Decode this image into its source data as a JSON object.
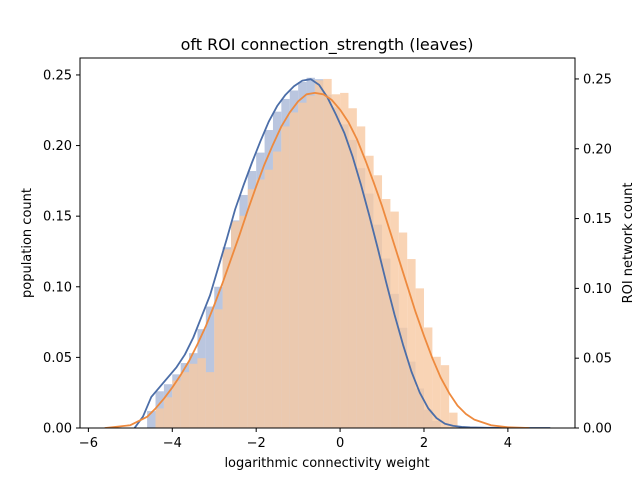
{
  "chart_data": {
    "type": "bar",
    "subtype": "histogram-with-kde",
    "title": "oft ROI connection_strength (leaves)",
    "xlabel": "logarithmic connectivity weight",
    "ylabel": "population count",
    "y2label": "ROI network count",
    "xlim": [
      -6.2,
      5.6
    ],
    "ylim": [
      0,
      0.262
    ],
    "y2lim": [
      0,
      0.265
    ],
    "x_ticks": [
      -6,
      -4,
      -2,
      0,
      2,
      4
    ],
    "x_tick_labels": [
      "−6",
      "−4",
      "−2",
      "0",
      "2",
      "4"
    ],
    "y_ticks": [
      0.0,
      0.05,
      0.1,
      0.15,
      0.2,
      0.25
    ],
    "y_tick_labels": [
      "0.00",
      "0.05",
      "0.10",
      "0.15",
      "0.20",
      "0.25"
    ],
    "y2_ticks": [
      0.0,
      0.05,
      0.1,
      0.15,
      0.2,
      0.25
    ],
    "y2_tick_labels": [
      "0.00",
      "0.05",
      "0.10",
      "0.15",
      "0.20",
      "0.25"
    ],
    "grid": false,
    "legend": "none",
    "series": [
      {
        "axis": "left",
        "color": "#4c6ea8",
        "fill_color": "#a9b8d7",
        "bin_width": 0.2,
        "bin_starts": [
          -4.8,
          -4.6,
          -4.4,
          -4.2,
          -4.0,
          -3.8,
          -3.6,
          -3.4,
          -3.2,
          -3.0,
          -2.8,
          -2.6,
          -2.4,
          -2.2,
          -2.0,
          -1.8,
          -1.6,
          -1.4,
          -1.2,
          -1.0,
          -0.8,
          -0.6,
          -0.4,
          -0.2,
          0.0,
          0.2,
          0.4,
          0.6,
          0.8,
          1.0,
          1.2,
          1.4,
          1.6,
          1.8,
          2.0,
          2.2,
          2.4,
          2.6
        ],
        "values": [
          0.0,
          0.012,
          0.026,
          0.031,
          0.038,
          0.046,
          0.053,
          0.07,
          0.086,
          0.1,
          0.128,
          0.147,
          0.165,
          0.182,
          0.195,
          0.211,
          0.224,
          0.233,
          0.239,
          0.245,
          0.248,
          0.247,
          0.236,
          0.227,
          0.215,
          0.204,
          0.184,
          0.166,
          0.144,
          0.12,
          0.095,
          0.071,
          0.047,
          0.028,
          0.013,
          0.005,
          0.0,
          0.0
        ],
        "kde_x": [
          -4.9,
          -4.7,
          -4.5,
          -4.3,
          -4.1,
          -3.9,
          -3.7,
          -3.5,
          -3.3,
          -3.1,
          -2.9,
          -2.7,
          -2.5,
          -2.3,
          -2.1,
          -1.9,
          -1.7,
          -1.5,
          -1.3,
          -1.1,
          -0.9,
          -0.7,
          -0.5,
          -0.3,
          -0.1,
          0.1,
          0.3,
          0.5,
          0.7,
          0.9,
          1.1,
          1.3,
          1.5,
          1.7,
          1.9,
          2.1,
          2.3,
          2.5,
          2.7,
          2.9,
          3.1,
          3.5,
          4.0,
          4.5,
          5.0
        ],
        "kde_y": [
          0.0,
          0.008,
          0.022,
          0.029,
          0.036,
          0.043,
          0.052,
          0.064,
          0.079,
          0.094,
          0.114,
          0.134,
          0.155,
          0.172,
          0.188,
          0.203,
          0.217,
          0.228,
          0.236,
          0.242,
          0.246,
          0.247,
          0.243,
          0.234,
          0.222,
          0.209,
          0.192,
          0.172,
          0.15,
          0.127,
          0.103,
          0.08,
          0.059,
          0.04,
          0.025,
          0.014,
          0.007,
          0.003,
          0.0015,
          0.0008,
          0.0004,
          0.0002,
          0.0001,
          0.0,
          0.0
        ]
      },
      {
        "axis": "right",
        "color": "#ee8a3e",
        "fill_color": "#f8c9a3",
        "bin_width": 0.2,
        "bin_starts": [
          -4.4,
          -4.2,
          -4.0,
          -3.8,
          -3.6,
          -3.4,
          -3.2,
          -3.0,
          -2.8,
          -2.6,
          -2.4,
          -2.2,
          -2.0,
          -1.8,
          -1.6,
          -1.4,
          -1.2,
          -1.0,
          -0.8,
          -0.6,
          -0.4,
          -0.2,
          0.0,
          0.2,
          0.4,
          0.6,
          0.8,
          1.0,
          1.2,
          1.4,
          1.6,
          1.8,
          2.0,
          2.2,
          2.4,
          2.6,
          2.8
        ],
        "values": [
          0.014,
          0.022,
          0.034,
          0.04,
          0.046,
          0.05,
          0.04,
          0.085,
          0.128,
          0.148,
          0.152,
          0.171,
          0.178,
          0.185,
          0.198,
          0.216,
          0.226,
          0.233,
          0.238,
          0.249,
          0.25,
          0.239,
          0.24,
          0.229,
          0.216,
          0.195,
          0.181,
          0.164,
          0.155,
          0.14,
          0.121,
          0.1,
          0.072,
          0.051,
          0.045,
          0.011,
          0.0
        ],
        "kde_x": [
          -5.6,
          -5.0,
          -4.6,
          -4.4,
          -4.2,
          -4.0,
          -3.8,
          -3.6,
          -3.4,
          -3.2,
          -3.0,
          -2.8,
          -2.6,
          -2.4,
          -2.2,
          -2.0,
          -1.8,
          -1.6,
          -1.4,
          -1.2,
          -1.0,
          -0.8,
          -0.6,
          -0.4,
          -0.2,
          0.0,
          0.2,
          0.4,
          0.6,
          0.8,
          1.0,
          1.2,
          1.4,
          1.6,
          1.8,
          2.0,
          2.2,
          2.4,
          2.6,
          2.8,
          3.0,
          3.2,
          3.6,
          4.0,
          4.5
        ],
        "kde_y": [
          0.0,
          0.002,
          0.008,
          0.014,
          0.021,
          0.029,
          0.038,
          0.048,
          0.06,
          0.073,
          0.088,
          0.104,
          0.121,
          0.138,
          0.156,
          0.173,
          0.189,
          0.203,
          0.216,
          0.226,
          0.234,
          0.239,
          0.24,
          0.239,
          0.235,
          0.228,
          0.219,
          0.207,
          0.192,
          0.176,
          0.159,
          0.14,
          0.121,
          0.102,
          0.083,
          0.066,
          0.05,
          0.036,
          0.025,
          0.016,
          0.01,
          0.006,
          0.002,
          0.0005,
          0.0
        ]
      }
    ]
  }
}
